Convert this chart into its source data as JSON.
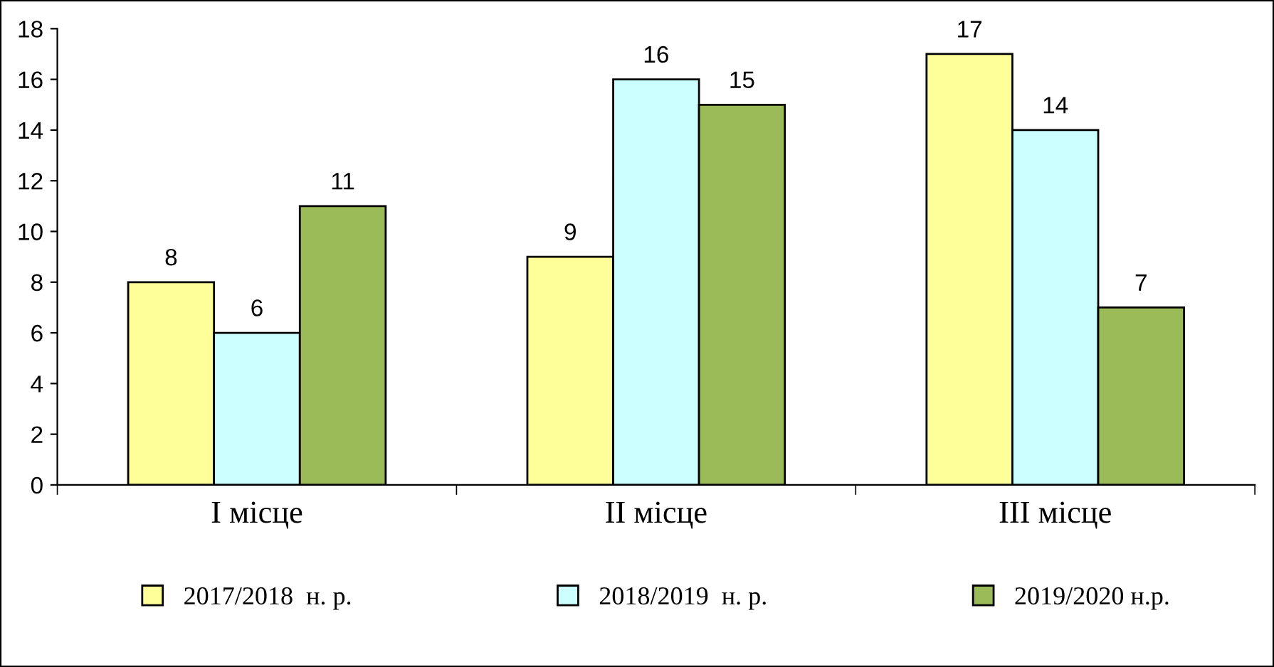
{
  "chart_data": {
    "type": "bar",
    "categories": [
      "I місце",
      "II місце",
      "III місце"
    ],
    "series": [
      {
        "name": "2017/2018  н. р.",
        "color": "#ffff99",
        "values": [
          8,
          9,
          17
        ]
      },
      {
        "name": "2018/2019  н. р.",
        "color": "#ccffff",
        "values": [
          6,
          16,
          14
        ]
      },
      {
        "name": "2019/2020 н.р.",
        "color": "#9bbb59",
        "values": [
          11,
          15,
          7
        ]
      }
    ],
    "ylim": [
      0,
      18
    ],
    "yticks": [
      0,
      2,
      4,
      6,
      8,
      10,
      12,
      14,
      16,
      18
    ],
    "data_labels": true,
    "grid": false,
    "legend": "bottom"
  }
}
